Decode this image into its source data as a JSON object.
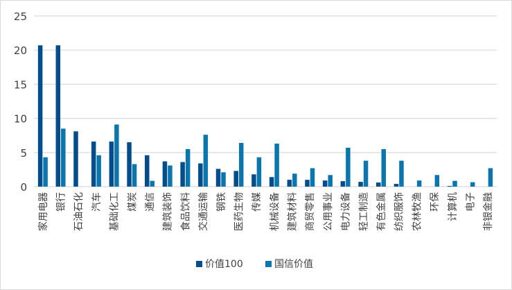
{
  "chart_data": {
    "type": "bar",
    "title": "",
    "xlabel": "",
    "ylabel": "",
    "ylim": [
      0,
      25
    ],
    "yticks": [
      0,
      5,
      10,
      15,
      20,
      25
    ],
    "grid": true,
    "legend_position": "bottom",
    "categories": [
      "家用电器",
      "银行",
      "石油石化",
      "汽车",
      "基础化工",
      "煤炭",
      "通信",
      "建筑装饰",
      "食品饮料",
      "交通运输",
      "钢铁",
      "医药生物",
      "传媒",
      "机械设备",
      "建筑材料",
      "商贸零售",
      "公用事业",
      "电力设备",
      "轻工制造",
      "有色金属",
      "纺织服饰",
      "农林牧渔",
      "环保",
      "计算机",
      "电子",
      "非银金融"
    ],
    "series": [
      {
        "name": "价值100",
        "color": "#044d8c",
        "values": [
          20.7,
          20.7,
          8.1,
          6.6,
          6.6,
          6.5,
          4.6,
          3.7,
          3.6,
          3.4,
          2.6,
          2.3,
          1.8,
          1.4,
          1.0,
          1.0,
          0.9,
          0.8,
          0.7,
          0.6,
          0.4,
          0,
          0,
          0.1,
          0,
          0
        ]
      },
      {
        "name": "国信价值",
        "color": "#0b75ad",
        "values": [
          4.3,
          8.5,
          0,
          4.6,
          9.1,
          3.3,
          0.85,
          3.1,
          5.5,
          7.6,
          2.1,
          6.4,
          4.3,
          6.3,
          1.9,
          2.7,
          1.7,
          5.7,
          3.8,
          5.5,
          3.8,
          0.9,
          1.7,
          0.85,
          0.65,
          2.7
        ]
      }
    ]
  }
}
